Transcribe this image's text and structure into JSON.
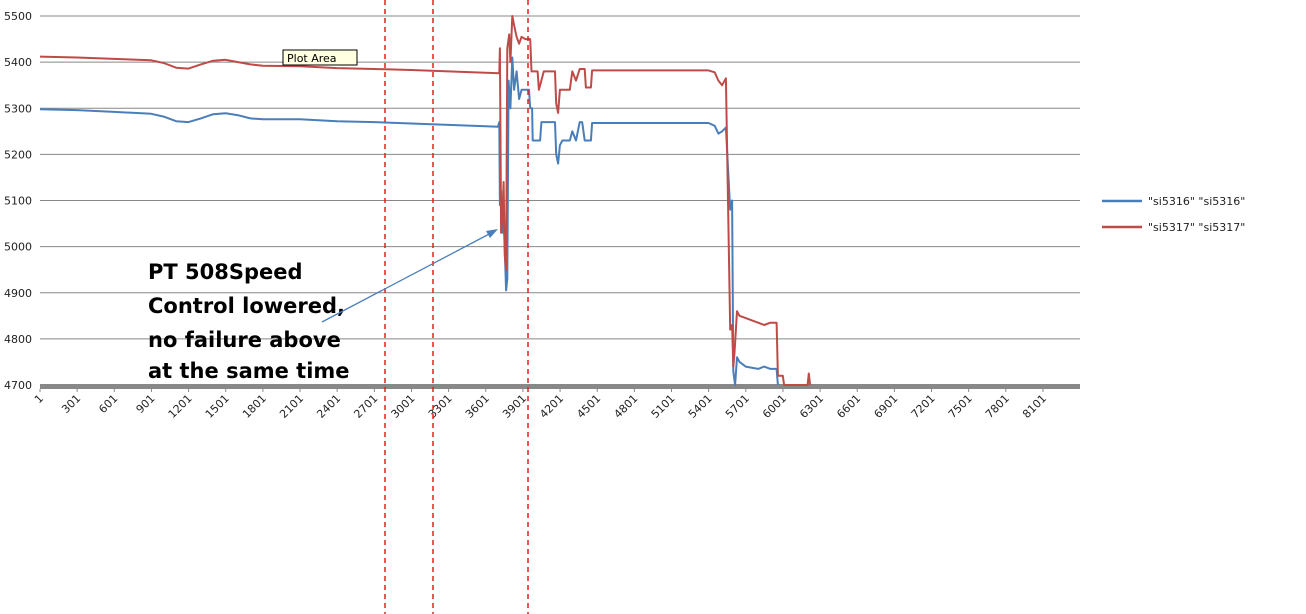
{
  "chart_data": {
    "type": "line",
    "title": "",
    "xlabel": "",
    "ylabel": "",
    "ylim": [
      4700,
      5500
    ],
    "xlim": [
      1,
      8400
    ],
    "y_ticks": [
      4700,
      4800,
      4900,
      5000,
      5100,
      5200,
      5300,
      5400,
      5500
    ],
    "x_ticks": [
      "1",
      "301",
      "601",
      "901",
      "1201",
      "1501",
      "1801",
      "2101",
      "2401",
      "2701",
      "3001",
      "3301",
      "3601",
      "3901",
      "4201",
      "4501",
      "4801",
      "5101",
      "5401",
      "5701",
      "6001",
      "6301",
      "6601",
      "6901",
      "7201",
      "7501",
      "7801",
      "8101"
    ],
    "grid": "horizontal",
    "legend_position": "right",
    "series": [
      {
        "name": "\"si5316\" \"si5316\"",
        "color": "#4a7ebb",
        "points": [
          [
            1,
            5298
          ],
          [
            300,
            5296
          ],
          [
            600,
            5292
          ],
          [
            900,
            5288
          ],
          [
            1000,
            5282
          ],
          [
            1100,
            5272
          ],
          [
            1200,
            5270
          ],
          [
            1300,
            5278
          ],
          [
            1400,
            5287
          ],
          [
            1500,
            5289
          ],
          [
            1600,
            5285
          ],
          [
            1700,
            5278
          ],
          [
            1800,
            5276
          ],
          [
            2100,
            5276
          ],
          [
            2400,
            5272
          ],
          [
            2700,
            5270
          ],
          [
            3000,
            5267
          ],
          [
            3300,
            5264
          ],
          [
            3600,
            5261
          ],
          [
            3700,
            5260
          ],
          [
            3710,
            5270
          ],
          [
            3715,
            5090
          ],
          [
            3725,
            5120
          ],
          [
            3735,
            5030
          ],
          [
            3745,
            5060
          ],
          [
            3755,
            4990
          ],
          [
            3765,
            4905
          ],
          [
            3775,
            4930
          ],
          [
            3785,
            5360
          ],
          [
            3800,
            5300
          ],
          [
            3815,
            5410
          ],
          [
            3830,
            5340
          ],
          [
            3850,
            5380
          ],
          [
            3870,
            5320
          ],
          [
            3890,
            5340
          ],
          [
            3950,
            5340
          ],
          [
            3960,
            5300
          ],
          [
            3975,
            5300
          ],
          [
            3980,
            5230
          ],
          [
            4040,
            5230
          ],
          [
            4050,
            5270
          ],
          [
            4160,
            5270
          ],
          [
            4170,
            5200
          ],
          [
            4185,
            5180
          ],
          [
            4200,
            5220
          ],
          [
            4220,
            5230
          ],
          [
            4280,
            5230
          ],
          [
            4300,
            5250
          ],
          [
            4330,
            5230
          ],
          [
            4360,
            5270
          ],
          [
            4380,
            5270
          ],
          [
            4400,
            5230
          ],
          [
            4450,
            5230
          ],
          [
            4460,
            5268
          ],
          [
            5400,
            5268
          ],
          [
            5450,
            5262
          ],
          [
            5480,
            5245
          ],
          [
            5510,
            5250
          ],
          [
            5540,
            5258
          ],
          [
            5575,
            5080
          ],
          [
            5590,
            5100
          ],
          [
            5600,
            4730
          ],
          [
            5615,
            4700
          ],
          [
            5630,
            4760
          ],
          [
            5650,
            4750
          ],
          [
            5700,
            4740
          ],
          [
            5800,
            4735
          ],
          [
            5850,
            4740
          ],
          [
            5900,
            4735
          ],
          [
            5950,
            4735
          ],
          [
            5960,
            4700
          ]
        ]
      },
      {
        "name": "\"si5317\" \"si5317\"",
        "color": "#be4b48",
        "points": [
          [
            1,
            5412
          ],
          [
            300,
            5410
          ],
          [
            600,
            5407
          ],
          [
            900,
            5404
          ],
          [
            1000,
            5398
          ],
          [
            1100,
            5388
          ],
          [
            1200,
            5386
          ],
          [
            1300,
            5395
          ],
          [
            1400,
            5403
          ],
          [
            1500,
            5405
          ],
          [
            1600,
            5400
          ],
          [
            1700,
            5395
          ],
          [
            1800,
            5392
          ],
          [
            2100,
            5391
          ],
          [
            2400,
            5387
          ],
          [
            2700,
            5385
          ],
          [
            3000,
            5383
          ],
          [
            3300,
            5380
          ],
          [
            3600,
            5377
          ],
          [
            3710,
            5376
          ],
          [
            3715,
            5430
          ],
          [
            3725,
            5030
          ],
          [
            3735,
            5060
          ],
          [
            3745,
            5140
          ],
          [
            3755,
            4980
          ],
          [
            3765,
            4950
          ],
          [
            3775,
            5430
          ],
          [
            3790,
            5460
          ],
          [
            3800,
            5400
          ],
          [
            3815,
            5500
          ],
          [
            3830,
            5480
          ],
          [
            3850,
            5455
          ],
          [
            3870,
            5440
          ],
          [
            3890,
            5455
          ],
          [
            3920,
            5450
          ],
          [
            3960,
            5450
          ],
          [
            3970,
            5380
          ],
          [
            4020,
            5380
          ],
          [
            4030,
            5340
          ],
          [
            4070,
            5380
          ],
          [
            4160,
            5380
          ],
          [
            4170,
            5310
          ],
          [
            4185,
            5290
          ],
          [
            4200,
            5340
          ],
          [
            4230,
            5340
          ],
          [
            4280,
            5340
          ],
          [
            4300,
            5380
          ],
          [
            4330,
            5360
          ],
          [
            4360,
            5385
          ],
          [
            4400,
            5385
          ],
          [
            4410,
            5345
          ],
          [
            4450,
            5345
          ],
          [
            4460,
            5382
          ],
          [
            5400,
            5382
          ],
          [
            5450,
            5378
          ],
          [
            5480,
            5360
          ],
          [
            5510,
            5350
          ],
          [
            5540,
            5365
          ],
          [
            5575,
            4820
          ],
          [
            5590,
            4830
          ],
          [
            5600,
            4740
          ],
          [
            5610,
            4770
          ],
          [
            5630,
            4860
          ],
          [
            5650,
            4850
          ],
          [
            5700,
            4845
          ],
          [
            5800,
            4835
          ],
          [
            5850,
            4830
          ],
          [
            5900,
            4835
          ],
          [
            5950,
            4835
          ],
          [
            5960,
            4720
          ],
          [
            6000,
            4720
          ],
          [
            6010,
            4700
          ],
          [
            6200,
            4700
          ],
          [
            6210,
            4725
          ],
          [
            6220,
            4700
          ]
        ]
      }
    ]
  },
  "annotation": {
    "lines": [
      "PT 508Speed",
      "Control lowered,",
      "no failure above",
      "at the same time"
    ]
  },
  "tooltip": {
    "label": "Plot Area"
  },
  "colors": {
    "marker_line": "#e81c1c",
    "grid": "#888888",
    "baseline": "#888888"
  }
}
